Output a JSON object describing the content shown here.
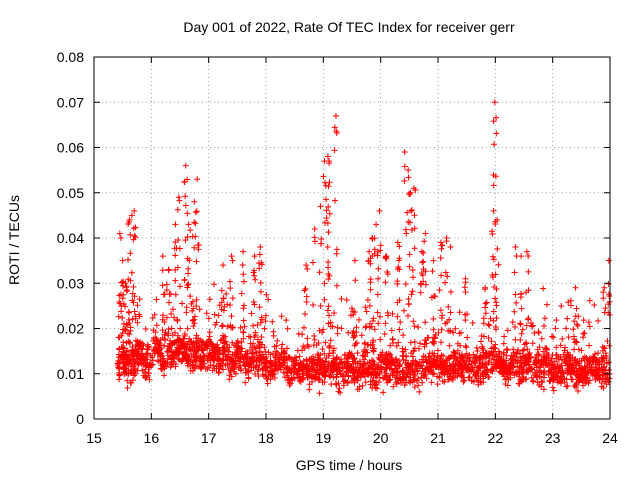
{
  "chart_data": {
    "type": "scatter",
    "title": "Day 001 of 2022, Rate Of TEC Index for receiver gerr",
    "xlabel": "GPS time / hours",
    "ylabel": "ROTI / TECUs",
    "xlim": [
      15,
      24
    ],
    "ylim": [
      0,
      0.08
    ],
    "x_ticks": [
      "15",
      "16",
      "17",
      "18",
      "19",
      "20",
      "21",
      "22",
      "23",
      "24"
    ],
    "y_ticks": [
      "0",
      "0.01",
      "0.02",
      "0.03",
      "0.04",
      "0.05",
      "0.06",
      "0.07",
      "0.08"
    ],
    "grid": true,
    "marker": "+",
    "series_color": "#ff0000",
    "series": [
      {
        "name": "ROTI",
        "baseline_x": [
          15.4,
          15.5,
          15.6,
          15.7,
          15.8,
          15.9,
          16.0,
          16.1,
          16.2,
          16.3,
          16.4,
          16.5,
          16.6,
          16.7,
          16.8,
          16.9,
          17.0,
          17.1,
          17.2,
          17.3,
          17.4,
          17.5,
          17.6,
          17.7,
          17.8,
          17.9,
          18.0,
          18.1,
          18.2,
          18.3,
          18.4,
          18.5,
          18.6,
          18.7,
          18.8,
          18.9,
          19.0,
          19.1,
          19.2,
          19.3,
          19.4,
          19.5,
          19.6,
          19.7,
          19.8,
          19.9,
          20.0,
          20.1,
          20.2,
          20.3,
          20.4,
          20.5,
          20.6,
          20.7,
          20.8,
          20.9,
          21.0,
          21.1,
          21.2,
          21.3,
          21.4,
          21.5,
          21.6,
          21.7,
          21.8,
          21.9,
          22.0,
          22.1,
          22.2,
          22.3,
          22.4,
          22.5,
          22.6,
          22.7,
          22.8,
          22.9,
          23.0,
          23.1,
          23.2,
          23.3,
          23.4,
          23.5,
          23.6,
          23.7,
          23.8,
          23.9,
          24.0
        ],
        "baseline_y": [
          0.012,
          0.014,
          0.011,
          0.013,
          0.015,
          0.012,
          0.014,
          0.016,
          0.013,
          0.015,
          0.014,
          0.016,
          0.015,
          0.014,
          0.016,
          0.013,
          0.015,
          0.014,
          0.013,
          0.015,
          0.012,
          0.014,
          0.013,
          0.012,
          0.014,
          0.013,
          0.012,
          0.011,
          0.013,
          0.012,
          0.011,
          0.012,
          0.011,
          0.012,
          0.011,
          0.012,
          0.011,
          0.012,
          0.011,
          0.01,
          0.012,
          0.011,
          0.01,
          0.012,
          0.011,
          0.01,
          0.011,
          0.012,
          0.011,
          0.01,
          0.011,
          0.012,
          0.011,
          0.012,
          0.011,
          0.012,
          0.011,
          0.012,
          0.011,
          0.012,
          0.011,
          0.012,
          0.011,
          0.012,
          0.011,
          0.012,
          0.013,
          0.012,
          0.011,
          0.012,
          0.011,
          0.012,
          0.011,
          0.012,
          0.011,
          0.012,
          0.011,
          0.01,
          0.011,
          0.012,
          0.011,
          0.01,
          0.011,
          0.012,
          0.011,
          0.01,
          0.011
        ],
        "peaks_x": [
          15.45,
          15.5,
          15.55,
          15.62,
          15.66,
          15.7,
          16.2,
          16.3,
          16.42,
          16.48,
          16.6,
          16.65,
          16.75,
          16.8,
          17.25,
          17.4,
          17.6,
          17.8,
          17.9,
          18.7,
          18.85,
          18.95,
          19.02,
          19.08,
          19.1,
          19.22,
          19.55,
          19.8,
          19.85,
          19.92,
          19.98,
          20.1,
          20.3,
          20.42,
          20.48,
          20.52,
          20.58,
          20.72,
          20.78,
          20.92,
          21.05,
          21.15,
          21.22,
          21.48,
          21.82,
          21.97,
          21.99,
          22.03,
          22.35,
          22.45,
          22.55,
          23.4,
          23.9,
          23.98
        ],
        "peaks_y": [
          0.041,
          0.035,
          0.03,
          0.044,
          0.045,
          0.046,
          0.036,
          0.033,
          0.043,
          0.049,
          0.056,
          0.043,
          0.048,
          0.053,
          0.034,
          0.036,
          0.037,
          0.036,
          0.038,
          0.034,
          0.042,
          0.047,
          0.057,
          0.058,
          0.057,
          0.067,
          0.035,
          0.037,
          0.04,
          0.043,
          0.046,
          0.036,
          0.039,
          0.059,
          0.055,
          0.05,
          0.051,
          0.037,
          0.041,
          0.035,
          0.039,
          0.04,
          0.038,
          0.031,
          0.029,
          0.046,
          0.07,
          0.044,
          0.038,
          0.036,
          0.037,
          0.029,
          0.029,
          0.035
        ]
      }
    ]
  }
}
